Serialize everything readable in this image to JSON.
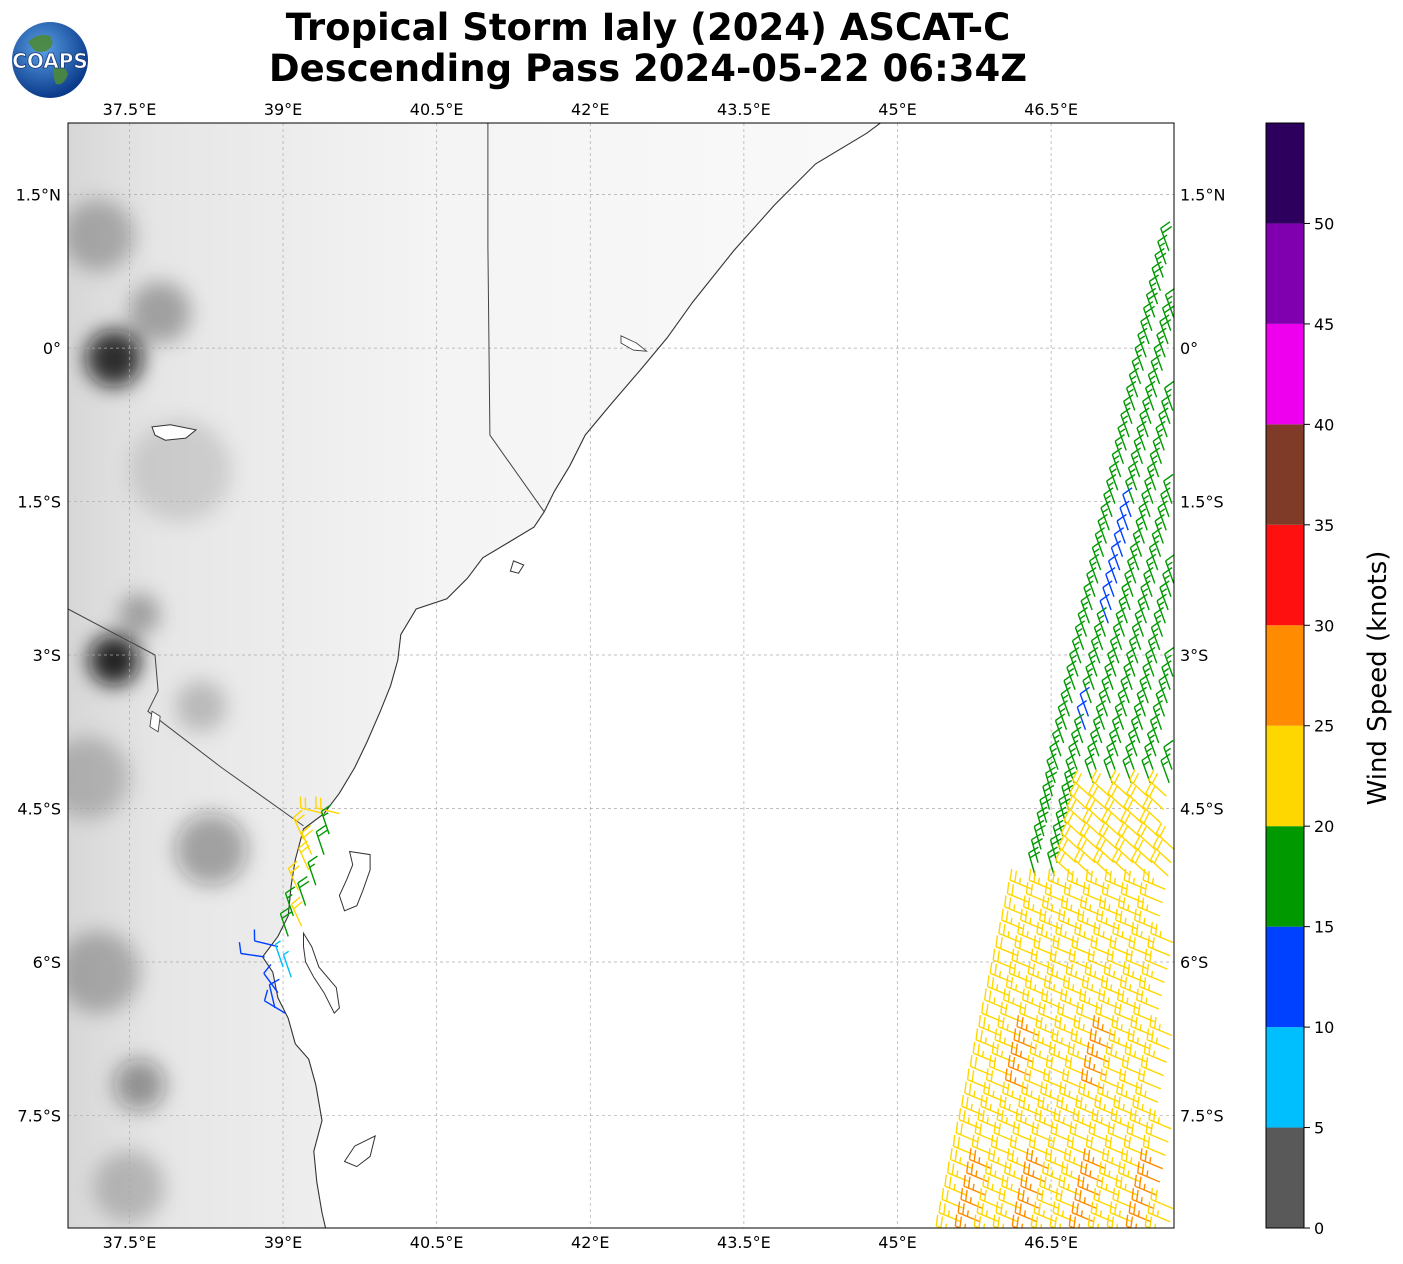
{
  "header": {
    "title_line1": "Tropical Storm Ialy (2024) ASCAT-C",
    "title_line2": "Descending Pass 2024-05-22 06:34Z",
    "logo_text": "COAPS"
  },
  "map": {
    "lon_ticks": [
      "37.5°E",
      "39°E",
      "40.5°E",
      "42°E",
      "43.5°E",
      "45°E",
      "46.5°E"
    ],
    "lat_ticks": [
      "1.5°N",
      "0°",
      "1.5°S",
      "3°S",
      "4.5°S",
      "6°S",
      "7.5°S"
    ],
    "lon_range": [
      36.9,
      47.7
    ],
    "lat_range": [
      -8.6,
      2.2
    ],
    "gridlines": true
  },
  "colorbar": {
    "label": "Wind Speed (knots)",
    "ticks": [
      "0",
      "5",
      "10",
      "15",
      "20",
      "25",
      "30",
      "35",
      "40",
      "45",
      "50"
    ],
    "max": 55,
    "colors": [
      "#595959",
      "#00bfff",
      "#0040ff",
      "#009900",
      "#ffd700",
      "#ff8c00",
      "#ff1010",
      "#803b28",
      "#ee00ee",
      "#8000b0",
      "#2c005c"
    ]
  },
  "land_shading": [
    {
      "lon": 37.35,
      "lat": -0.1,
      "r": 0.28,
      "opacity": 0.85
    },
    {
      "lon": 37.35,
      "lat": -3.05,
      "r": 0.25,
      "opacity": 0.9
    },
    {
      "lon": 37.8,
      "lat": 0.35,
      "r": 0.3,
      "opacity": 0.3
    },
    {
      "lon": 37.2,
      "lat": 1.1,
      "r": 0.35,
      "opacity": 0.25
    },
    {
      "lon": 37.6,
      "lat": -2.6,
      "r": 0.2,
      "opacity": 0.3
    },
    {
      "lon": 38.2,
      "lat": -3.5,
      "r": 0.25,
      "opacity": 0.2
    },
    {
      "lon": 38.3,
      "lat": -4.9,
      "r": 0.35,
      "opacity": 0.35
    },
    {
      "lon": 37.6,
      "lat": -7.2,
      "r": 0.25,
      "opacity": 0.4
    },
    {
      "lon": 37.2,
      "lat": -6.1,
      "r": 0.4,
      "opacity": 0.25
    },
    {
      "lon": 37.5,
      "lat": -8.2,
      "r": 0.35,
      "opacity": 0.2
    },
    {
      "lon": 38.0,
      "lat": -1.2,
      "r": 0.5,
      "opacity": 0.12
    },
    {
      "lon": 37.1,
      "lat": -4.2,
      "r": 0.4,
      "opacity": 0.2
    }
  ]
}
